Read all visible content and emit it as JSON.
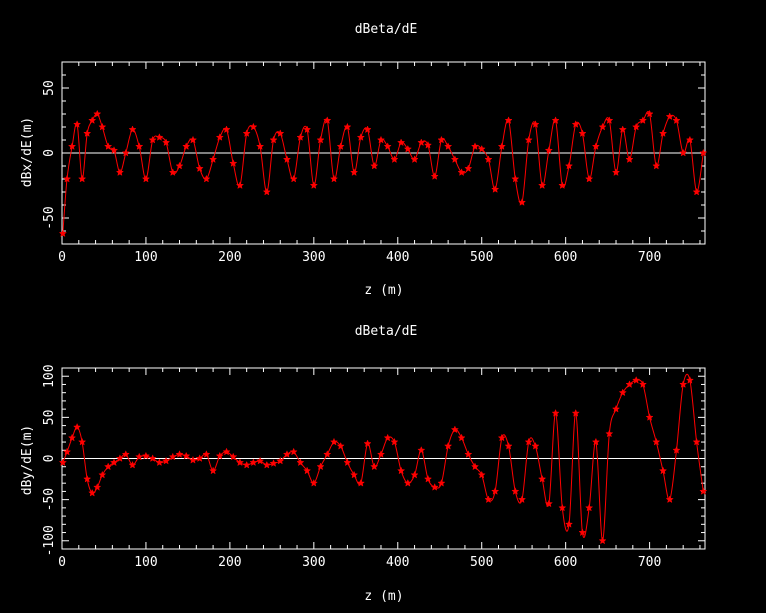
{
  "chart_data": [
    {
      "type": "line",
      "title": "dBeta/dE",
      "xlabel": "z (m)",
      "ylabel": "dBx/dE(m)",
      "xlim": [
        0,
        766
      ],
      "ylim": [
        -70,
        70
      ],
      "xticks": [
        0,
        100,
        200,
        300,
        400,
        500,
        600,
        700
      ],
      "yticks": [
        -50,
        0,
        50
      ],
      "zero_line": true,
      "series": [
        {
          "color": "#ff0000",
          "marker": "star",
          "x": [
            1,
            6,
            12,
            18,
            24,
            30,
            36,
            42,
            48,
            55,
            62,
            69,
            76,
            84,
            92,
            100,
            108,
            116,
            124,
            132,
            140,
            148,
            156,
            164,
            172,
            180,
            188,
            196,
            204,
            212,
            220,
            228,
            236,
            244,
            252,
            260,
            268,
            276,
            284,
            292,
            300,
            308,
            316,
            324,
            332,
            340,
            348,
            356,
            364,
            372,
            380,
            388,
            396,
            404,
            412,
            420,
            428,
            436,
            444,
            452,
            460,
            468,
            476,
            484,
            492,
            500,
            508,
            516,
            524,
            532,
            540,
            548,
            556,
            564,
            572,
            580,
            588,
            596,
            604,
            612,
            620,
            628,
            636,
            644,
            652,
            660,
            668,
            676,
            684,
            692,
            700,
            708,
            716,
            724,
            732,
            740,
            748,
            756,
            764
          ],
          "y": [
            -62,
            -20,
            5,
            22,
            -20,
            15,
            25,
            30,
            20,
            5,
            2,
            -15,
            0,
            18,
            5,
            -20,
            10,
            12,
            8,
            -15,
            -10,
            5,
            10,
            -12,
            -20,
            -5,
            12,
            18,
            -8,
            -25,
            15,
            20,
            5,
            -30,
            10,
            15,
            -5,
            -20,
            12,
            18,
            -25,
            10,
            25,
            -20,
            5,
            20,
            -15,
            12,
            18,
            -10,
            10,
            5,
            -5,
            8,
            3,
            -5,
            8,
            6,
            -18,
            10,
            5,
            -5,
            -15,
            -12,
            5,
            3,
            -5,
            -28,
            5,
            25,
            -20,
            -38,
            10,
            22,
            -25,
            2,
            25,
            -25,
            -10,
            22,
            15,
            -20,
            5,
            20,
            25,
            -15,
            18,
            -5,
            20,
            25,
            30,
            -10,
            15,
            28,
            25,
            0,
            10,
            -30,
            0
          ]
        }
      ]
    },
    {
      "type": "line",
      "title": "dBeta/dE",
      "xlabel": "z (m)",
      "ylabel": "dBy/dE(m)",
      "xlim": [
        0,
        766
      ],
      "ylim": [
        -110,
        110
      ],
      "xticks": [
        0,
        100,
        200,
        300,
        400,
        500,
        600,
        700
      ],
      "yticks": [
        -100,
        -50,
        0,
        50,
        100
      ],
      "zero_line": true,
      "series": [
        {
          "color": "#ff0000",
          "marker": "star",
          "x": [
            1,
            6,
            12,
            18,
            24,
            30,
            36,
            42,
            48,
            55,
            62,
            69,
            76,
            84,
            92,
            100,
            108,
            116,
            124,
            132,
            140,
            148,
            156,
            164,
            172,
            180,
            188,
            196,
            204,
            212,
            220,
            228,
            236,
            244,
            252,
            260,
            268,
            276,
            284,
            292,
            300,
            308,
            316,
            324,
            332,
            340,
            348,
            356,
            364,
            372,
            380,
            388,
            396,
            404,
            412,
            420,
            428,
            436,
            444,
            452,
            460,
            468,
            476,
            484,
            492,
            500,
            508,
            516,
            524,
            532,
            540,
            548,
            556,
            564,
            572,
            580,
            588,
            596,
            604,
            612,
            620,
            628,
            636,
            644,
            652,
            660,
            668,
            676,
            684,
            692,
            700,
            708,
            716,
            724,
            732,
            740,
            748,
            756,
            764
          ],
          "y": [
            -5,
            8,
            25,
            38,
            20,
            -25,
            -42,
            -35,
            -20,
            -10,
            -5,
            0,
            5,
            -8,
            2,
            3,
            0,
            -5,
            -3,
            2,
            5,
            3,
            -2,
            0,
            5,
            -15,
            3,
            8,
            2,
            -5,
            -8,
            -5,
            -3,
            -8,
            -6,
            -3,
            5,
            8,
            -5,
            -15,
            -30,
            -10,
            5,
            20,
            15,
            -5,
            -20,
            -30,
            18,
            -10,
            5,
            25,
            20,
            -15,
            -30,
            -20,
            10,
            -25,
            -35,
            -30,
            15,
            35,
            25,
            5,
            -10,
            -20,
            -50,
            -40,
            25,
            15,
            -40,
            -50,
            20,
            15,
            -25,
            -55,
            55,
            -60,
            -80,
            55,
            -90,
            -60,
            20,
            -100,
            30,
            60,
            80,
            90,
            95,
            90,
            50,
            20,
            -15,
            -50,
            10,
            90,
            95,
            20,
            -40
          ]
        }
      ]
    }
  ]
}
